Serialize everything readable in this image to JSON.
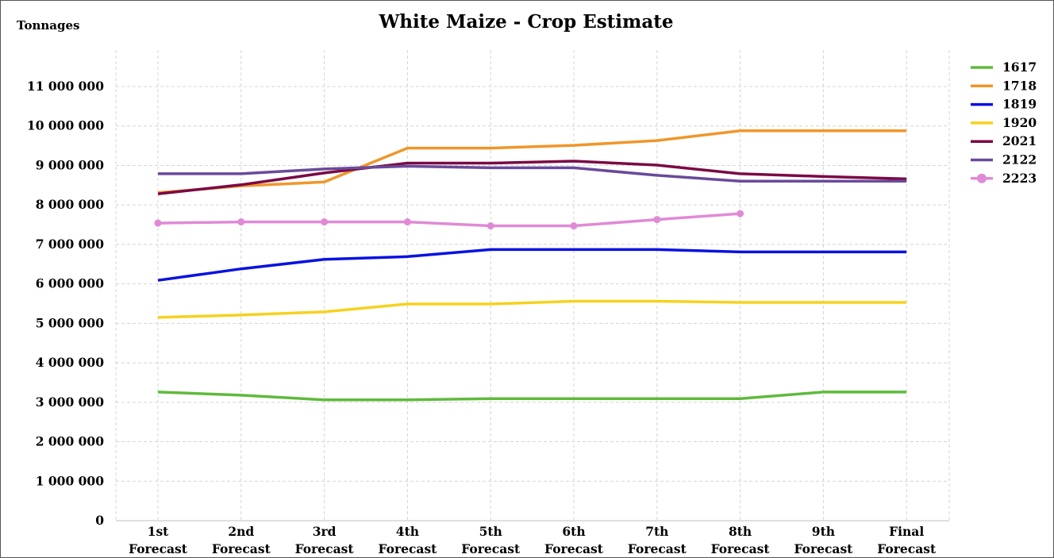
{
  "chart_data": {
    "type": "line",
    "title": "White Maize - Crop Estimate",
    "ylabel": "Tonnages",
    "xlabel": "",
    "ylim": [
      0,
      11500000
    ],
    "y_ticks": [
      0,
      1000000,
      2000000,
      3000000,
      4000000,
      5000000,
      6000000,
      7000000,
      8000000,
      9000000,
      10000000,
      11000000
    ],
    "y_tick_labels": [
      "0",
      "1 000 000",
      "2 000 000",
      "3 000 000",
      "4 000 000",
      "5 000 000",
      "6 000 000",
      "7 000 000",
      "8 000 000",
      "9 000 000",
      "10 000 000",
      "11 000 000"
    ],
    "categories": [
      [
        "1st",
        "Forecast"
      ],
      [
        "2nd",
        "Forecast"
      ],
      [
        "3rd",
        "Forecast"
      ],
      [
        "4th",
        "Forecast"
      ],
      [
        "5th",
        "Forecast"
      ],
      [
        "6th",
        "Forecast"
      ],
      [
        "7th",
        "Forecast"
      ],
      [
        "8th",
        "Forecast"
      ],
      [
        "9th",
        "Forecast"
      ],
      [
        "Final",
        "Forecast"
      ]
    ],
    "grid": "vertical and horizontal dashed",
    "legend_position": "right",
    "series": [
      {
        "name": "1617",
        "color": "#5fba3c",
        "marker": false,
        "values": [
          3260000,
          3180000,
          3060000,
          3060000,
          3090000,
          3090000,
          3090000,
          3090000,
          3260000,
          3260000
        ]
      },
      {
        "name": "1718",
        "color": "#f0962a",
        "marker": false,
        "values": [
          8310000,
          8480000,
          8580000,
          9440000,
          9440000,
          9510000,
          9630000,
          9880000,
          9880000,
          9880000
        ]
      },
      {
        "name": "1819",
        "color": "#0a12e0",
        "marker": false,
        "values": [
          6090000,
          6380000,
          6620000,
          6690000,
          6870000,
          6870000,
          6870000,
          6810000,
          6810000,
          6810000
        ]
      },
      {
        "name": "1920",
        "color": "#f5d21e",
        "marker": false,
        "values": [
          5150000,
          5210000,
          5290000,
          5490000,
          5490000,
          5560000,
          5560000,
          5530000,
          5530000,
          5530000
        ]
      },
      {
        "name": "2021",
        "color": "#7a0a45",
        "marker": false,
        "values": [
          8280000,
          8510000,
          8810000,
          9060000,
          9060000,
          9110000,
          9010000,
          8790000,
          8720000,
          8660000
        ]
      },
      {
        "name": "2122",
        "color": "#6a4a9a",
        "marker": false,
        "values": [
          8790000,
          8790000,
          8910000,
          8980000,
          8940000,
          8940000,
          8750000,
          8600000,
          8600000,
          8600000
        ]
      },
      {
        "name": "2223",
        "color": "#e08ad6",
        "marker": true,
        "values": [
          7540000,
          7570000,
          7570000,
          7570000,
          7470000,
          7470000,
          7630000,
          7780000,
          null,
          null
        ]
      }
    ]
  }
}
